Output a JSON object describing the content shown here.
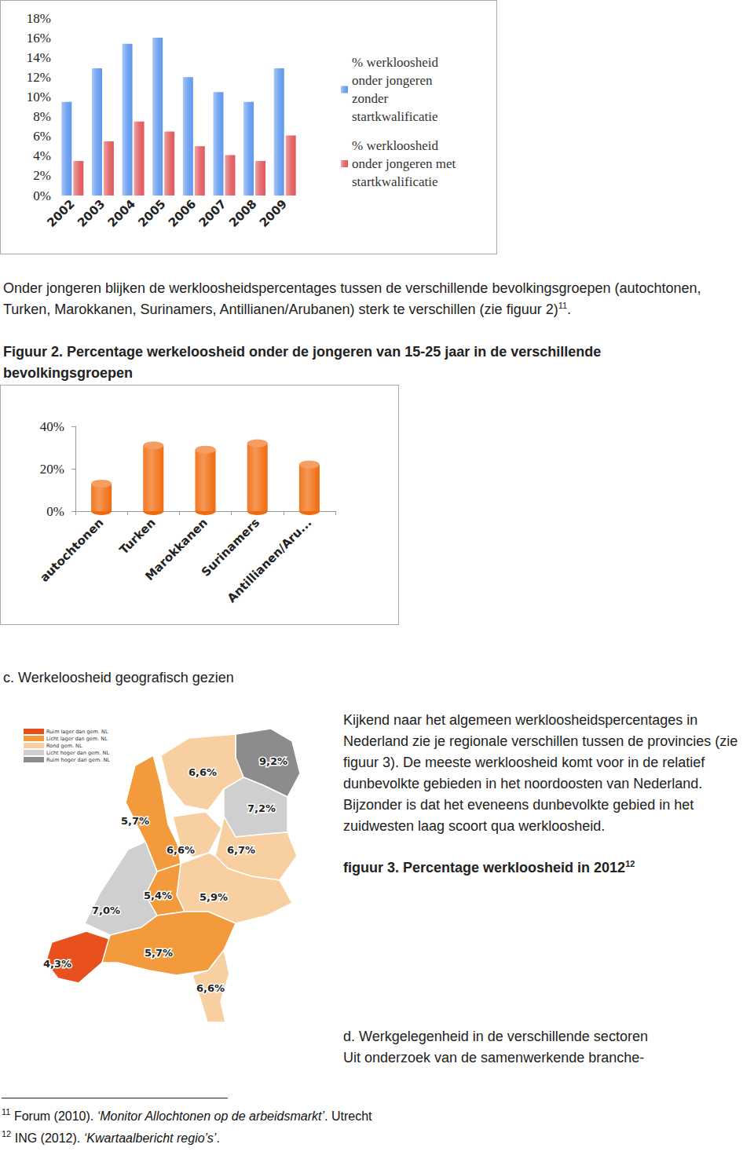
{
  "chart_data": [
    {
      "type": "bar",
      "categories": [
        "2002",
        "2003",
        "2004",
        "2005",
        "2006",
        "2007",
        "2008",
        "2009"
      ],
      "series": [
        {
          "name": "% werkloosheid onder jongeren zonder startkwalificatie",
          "color": "#5f98ee",
          "values": [
            9.5,
            12.9,
            15.4,
            16,
            12,
            10.5,
            9.5,
            12.9
          ]
        },
        {
          "name": "% werkloosheid onder jongeren met startkwalificatie",
          "color": "#e0575a",
          "values": [
            3.5,
            5.5,
            7.5,
            6.5,
            5,
            4.1,
            3.5,
            6.1
          ]
        }
      ],
      "ylim": [
        0,
        18
      ],
      "yticks": [
        {
          "value": 0,
          "label": "0%"
        },
        {
          "value": 2,
          "label": "2%"
        },
        {
          "value": 4,
          "label": "4%"
        },
        {
          "value": 6,
          "label": "6%"
        },
        {
          "value": 8,
          "label": "8%"
        },
        {
          "value": 10,
          "label": "10%"
        },
        {
          "value": 12,
          "label": "12%"
        },
        {
          "value": 14,
          "label": "14%"
        },
        {
          "value": 16,
          "label": "16%"
        },
        {
          "value": 18,
          "label": "18%"
        }
      ],
      "grid": false,
      "legend": "right"
    },
    {
      "type": "bar",
      "title": "Figuur 2. Percentage werkeloosheid onder de jongeren van 15-25 jaar in de verschillende bevolkingsgroepen",
      "categories": [
        "autochtonen",
        "Turken",
        "Marokkanen",
        "Surinamers",
        "Antillianen/Aru..."
      ],
      "values": [
        13,
        31,
        29,
        32,
        22
      ],
      "color": "#f06a0c",
      "ylim": [
        0,
        40
      ],
      "yticks": [
        {
          "value": 0,
          "label": "0%"
        },
        {
          "value": 20,
          "label": "20%"
        },
        {
          "value": 40,
          "label": "40%"
        }
      ],
      "grid": false
    }
  ],
  "document": {
    "paragraph_1": {
      "text": "Onder jongeren blijken de werkloosheidspercentages tussen de verschillende bevolkingsgroepen (autochtonen, Turken, Marokkanen, Surinamers, Antillianen/Arubanen) sterk te verschillen (zie figuur 2)",
      "note": "11",
      "end": "."
    },
    "heading_c": "c. Werkeloosheid geografisch gezien",
    "paragraph_2": "Kijkend naar het algemeen werkloosheidspercentages in Nederland zie je regionale verschillen tussen de provincies (zie figuur 3). De meeste werkloosheid komt voor in de relatief dunbevolkte gebieden in het noordoosten van Nederland. Bijzonder is dat het eveneens dunbevolkte gebied in het zuidwesten laag scoort qua werkloosheid.",
    "figure_3_caption": {
      "text": "figuur 3. Percentage werkloosheid in 2012",
      "note": "12"
    },
    "heading_d": "d. Werkgelegenheid in de verschillende sectoren",
    "paragraph_3": "Uit onderzoek van de samenwerkende branche-",
    "footnotes": [
      {
        "mark": "11",
        "parts": [
          {
            "text": "Forum (2010). "
          },
          {
            "text": "‘Monitor Allochtonen op de arbeidsmarkt’",
            "italic": true
          },
          {
            "text": ". Utrecht"
          }
        ]
      },
      {
        "mark": "12",
        "parts": [
          {
            "text": "ING (2012). "
          },
          {
            "text": "‘Kwartaalbericht regio’s’",
            "italic": true
          },
          {
            "text": "."
          }
        ]
      }
    ]
  },
  "map": {
    "legend": [
      {
        "label": "Ruim lager dan gem. NL",
        "color": "#e8501e"
      },
      {
        "label": "Licht lager dan gem. NL",
        "color": "#f29a3c"
      },
      {
        "label": "Rond gem. NL",
        "color": "#f8cfa0"
      },
      {
        "label": "Licht hoger dan gem. NL",
        "color": "#cfcfcf"
      },
      {
        "label": "Ruim hoger dan gem. NL",
        "color": "#8c8c8c"
      }
    ],
    "regions": [
      {
        "label": "9,2%",
        "color": "#8c8c8c"
      },
      {
        "label": "6,6%",
        "color": "#f8cfa0"
      },
      {
        "label": "7,2%",
        "color": "#cfcfcf"
      },
      {
        "label": "5,7%",
        "color": "#f29a3c"
      },
      {
        "label": "6,6%",
        "color": "#f8cfa0"
      },
      {
        "label": "6,7%",
        "color": "#f8cfa0"
      },
      {
        "label": "5,9%",
        "color": "#f8cfa0"
      },
      {
        "label": "5,4%",
        "color": "#f29a3c"
      },
      {
        "label": "7,0%",
        "color": "#cfcfcf"
      },
      {
        "label": "4,3%",
        "color": "#e8501e"
      },
      {
        "label": "5,7%",
        "color": "#f29a3c"
      },
      {
        "label": "6,6%",
        "color": "#f8cfa0"
      }
    ]
  }
}
